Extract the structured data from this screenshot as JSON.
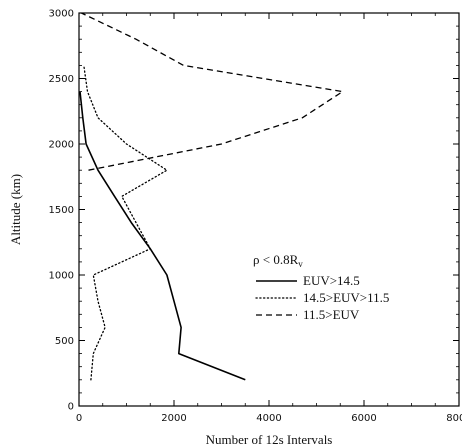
{
  "chart_data": {
    "type": "line",
    "xlabel": "Number of 12s Intervals",
    "ylabel": "Altitude (km)",
    "xlim": [
      0,
      8000
    ],
    "ylim": [
      0,
      3000
    ],
    "x_ticks": [
      0,
      2000,
      4000,
      6000,
      8000
    ],
    "y_ticks": [
      0,
      500,
      1000,
      1500,
      2000,
      2500,
      3000
    ],
    "grid": false,
    "legend_position": "middle-right",
    "legend_title": "ρ < 0.8R",
    "legend_title_subscript": "v",
    "series": [
      {
        "name": "EUV>14.5",
        "style": "solid",
        "points": [
          [
            3500,
            200
          ],
          [
            2100,
            400
          ],
          [
            2150,
            600
          ],
          [
            2000,
            800
          ],
          [
            1850,
            1000
          ],
          [
            1500,
            1200
          ],
          [
            1100,
            1400
          ],
          [
            750,
            1600
          ],
          [
            400,
            1800
          ],
          [
            150,
            2000
          ],
          [
            80,
            2200
          ],
          [
            20,
            2400
          ]
        ]
      },
      {
        "name": "14.5>EUV>11.5",
        "style": "dotted",
        "points": [
          [
            250,
            200
          ],
          [
            300,
            400
          ],
          [
            550,
            600
          ],
          [
            400,
            800
          ],
          [
            300,
            1000
          ],
          [
            1500,
            1200
          ],
          [
            1200,
            1400
          ],
          [
            900,
            1600
          ],
          [
            1850,
            1800
          ],
          [
            1000,
            2000
          ],
          [
            400,
            2200
          ],
          [
            180,
            2400
          ],
          [
            100,
            2600
          ]
        ]
      },
      {
        "name": "11.5>EUV",
        "style": "dashed",
        "points": [
          [
            200,
            1800
          ],
          [
            3000,
            2000
          ],
          [
            4700,
            2200
          ],
          [
            5550,
            2400
          ],
          [
            2200,
            2600
          ],
          [
            1200,
            2800
          ],
          [
            50,
            3000
          ]
        ]
      }
    ]
  }
}
